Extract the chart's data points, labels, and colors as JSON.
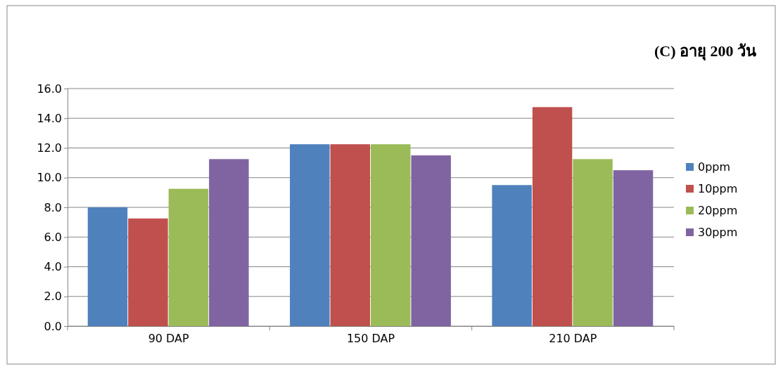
{
  "chart_data": {
    "type": "bar",
    "title": "(C) อายุ 200 วัน",
    "categories": [
      "90 DAP",
      "150 DAP",
      "210 DAP"
    ],
    "series": [
      {
        "name": "0ppm",
        "color": "#4f81bd",
        "values": [
          8.0,
          12.25,
          9.5
        ]
      },
      {
        "name": "10ppm",
        "color": "#c0504d",
        "values": [
          7.25,
          12.25,
          14.75
        ]
      },
      {
        "name": "20ppm",
        "color": "#9bbb59",
        "values": [
          9.25,
          12.25,
          11.25
        ]
      },
      {
        "name": "30ppm",
        "color": "#8064a2",
        "values": [
          11.25,
          11.5,
          10.5
        ]
      }
    ],
    "ylim": [
      0,
      16
    ],
    "yticks": [
      {
        "value": 0,
        "label": "0.0"
      },
      {
        "value": 2,
        "label": "2.0"
      },
      {
        "value": 4,
        "label": "4.0"
      },
      {
        "value": 6,
        "label": "6.0"
      },
      {
        "value": 8,
        "label": "8.0"
      },
      {
        "value": 10,
        "label": "10.0"
      },
      {
        "value": 12,
        "label": "12.0"
      },
      {
        "value": 14,
        "label": "14.0"
      },
      {
        "value": 16,
        "label": "16.0"
      }
    ],
    "grid": "y",
    "legend": "right"
  }
}
